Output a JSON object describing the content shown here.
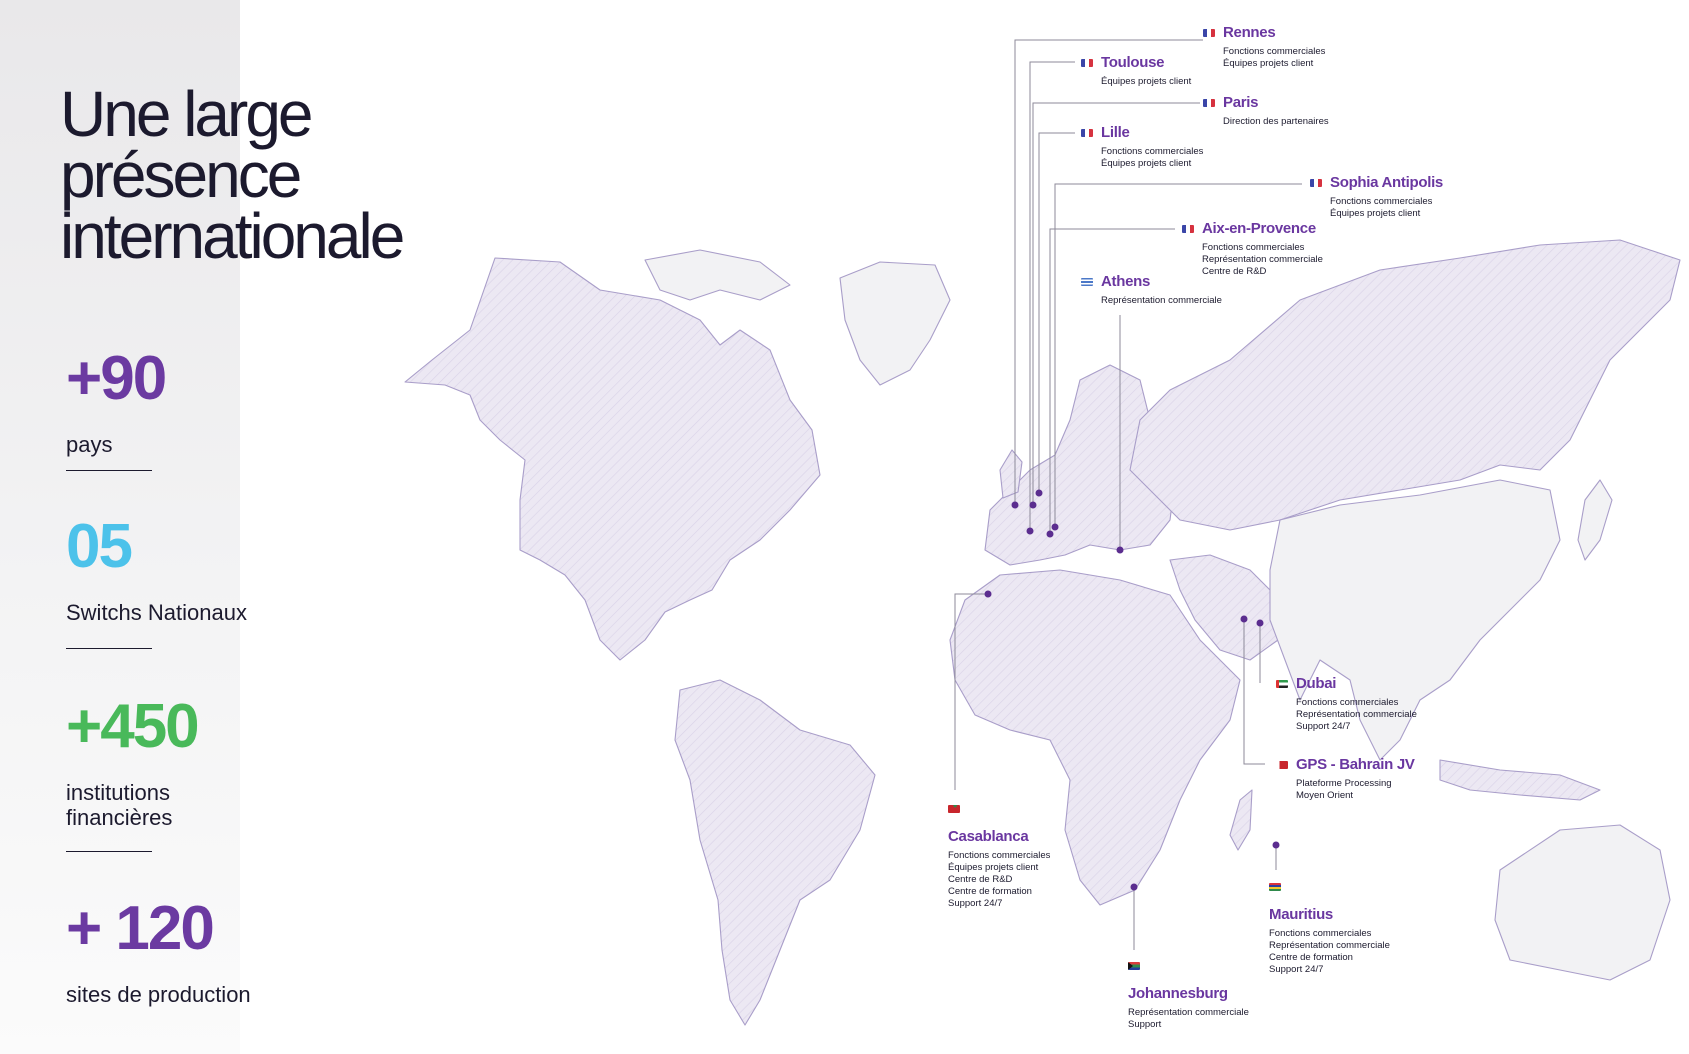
{
  "headline": [
    "Une large",
    "présence",
    "internationale"
  ],
  "stats": [
    {
      "value": "+90",
      "label": "pays",
      "color": "#6b3aa1"
    },
    {
      "value": "05",
      "label": "Switchs Nationaux",
      "color": "#4cc2ea"
    },
    {
      "value": "+450",
      "label": "institutions\nfinancières",
      "color": "#49b95a"
    },
    {
      "value": "+ 120",
      "label": "sites de production",
      "color": "#6b3aa1"
    }
  ],
  "colors": {
    "accent_purple": "#6a37a0",
    "land_fill": "#ece8f3",
    "land_stroke": "#a99ec9",
    "land_light": "#f2f2f4",
    "marker": "#5b2d8f"
  },
  "offices": {
    "rennes": {
      "city": "Rennes",
      "flag": "fr-flag-icon",
      "desc": "Fonctions commerciales\nÉquipes projets client"
    },
    "toulouse": {
      "city": "Toulouse",
      "flag": "fr-flag-icon",
      "desc": "Équipes projets client"
    },
    "paris": {
      "city": "Paris",
      "flag": "fr-flag-icon",
      "desc": "Direction des partenaires"
    },
    "lille": {
      "city": "Lille",
      "flag": "fr-flag-icon",
      "desc": "Fonctions commerciales\nÉquipes projets client"
    },
    "sophia": {
      "city": "Sophia Antipolis",
      "flag": "fr-flag-icon",
      "desc": "Fonctions commerciales\nÉquipes projets client"
    },
    "aix": {
      "city": "Aix-en-Provence",
      "flag": "fr-flag-icon",
      "desc": "Fonctions commerciales\nReprésentation commerciale\nCentre de R&D"
    },
    "athens": {
      "city": "Athens",
      "flag": "gr-flag-icon",
      "desc": "Représentation commerciale"
    },
    "dubai": {
      "city": "Dubai",
      "flag": "ae-flag-icon",
      "desc": "Fonctions commerciales\nReprésentation commerciale\nSupport 24/7"
    },
    "bahrain": {
      "city": "GPS - Bahrain JV",
      "flag": "bh-flag-icon",
      "desc": "Plateforme Processing\nMoyen Orient"
    },
    "casablanca": {
      "city": "Casablanca",
      "flag": "ma-flag-icon",
      "desc": "Fonctions commerciales\nÉquipes projets client\nCentre de R&D\nCentre de formation\nSupport 24/7"
    },
    "mauritius": {
      "city": "Mauritius",
      "flag": "mu-flag-icon",
      "desc": "Fonctions commerciales\nReprésentation commerciale\nCentre de formation\nSupport 24/7"
    },
    "johannesburg": {
      "city": "Johannesburg",
      "flag": "za-flag-icon",
      "desc": "Représentation commerciale\nSupport"
    }
  }
}
